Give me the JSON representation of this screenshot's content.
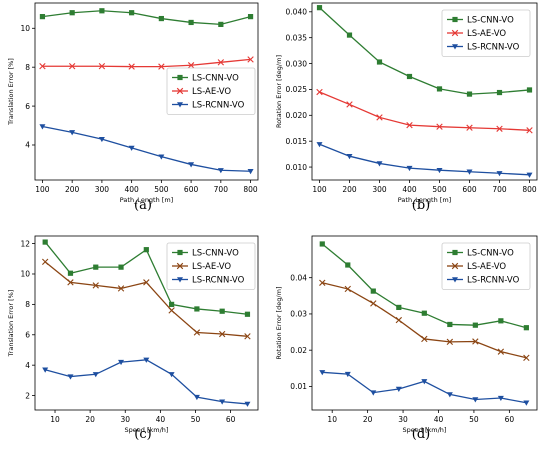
{
  "chart_data": [
    {
      "type": "line",
      "caption": "(a)",
      "xlabel": "Path_Length [m]",
      "ylabel": "Translation Error [%]",
      "xlim": [
        75,
        825
      ],
      "ylim": [
        2.2,
        11.3
      ],
      "xticks": [
        100,
        200,
        300,
        400,
        500,
        600,
        700,
        800
      ],
      "yticks": [
        4,
        6,
        8,
        10
      ],
      "ytick_labels": [
        "4",
        "6",
        "8",
        "10"
      ],
      "legend_position": "center-right",
      "x": [
        100,
        200,
        300,
        400,
        500,
        600,
        700,
        800
      ],
      "series": [
        {
          "name": "LS-CNN-VO",
          "color": "#2e7d32",
          "marker": "square",
          "values": [
            10.6,
            10.8,
            10.9,
            10.8,
            10.5,
            10.3,
            10.2,
            10.6
          ]
        },
        {
          "name": "LS-AE-VO",
          "color": "#e53935",
          "marker": "x",
          "values": [
            8.05,
            8.05,
            8.05,
            8.03,
            8.03,
            8.1,
            8.25,
            8.4
          ]
        },
        {
          "name": "LS-RCNN-VO",
          "color": "#1e4fa0",
          "marker": "triangle-down",
          "values": [
            4.95,
            4.65,
            4.3,
            3.85,
            3.4,
            3.0,
            2.7,
            2.65
          ]
        }
      ]
    },
    {
      "type": "line",
      "caption": "(b)",
      "xlabel": "Path_Length [m]",
      "ylabel": "Rotation Error [deg/m]",
      "xlim": [
        75,
        825
      ],
      "ylim": [
        0.0075,
        0.0417
      ],
      "xticks": [
        100,
        200,
        300,
        400,
        500,
        600,
        700,
        800
      ],
      "yticks": [
        0.01,
        0.015,
        0.02,
        0.025,
        0.03,
        0.035,
        0.04
      ],
      "ytick_labels": [
        "0.010",
        "0.015",
        "0.020",
        "0.025",
        "0.030",
        "0.035",
        "0.040"
      ],
      "legend_position": "top-right",
      "x": [
        100,
        200,
        300,
        400,
        500,
        600,
        700,
        800
      ],
      "series": [
        {
          "name": "LS-CNN-VO",
          "color": "#2e7d32",
          "marker": "square",
          "values": [
            0.0408,
            0.0355,
            0.0303,
            0.0275,
            0.0251,
            0.0241,
            0.0244,
            0.0249
          ]
        },
        {
          "name": "LS-AE-VO",
          "color": "#e53935",
          "marker": "x",
          "values": [
            0.0245,
            0.0221,
            0.0196,
            0.0181,
            0.0178,
            0.0176,
            0.0174,
            0.0171
          ]
        },
        {
          "name": "LS-RCNN-VO",
          "color": "#1e4fa0",
          "marker": "triangle-down",
          "values": [
            0.0144,
            0.0121,
            0.0107,
            0.0098,
            0.0094,
            0.0091,
            0.0088,
            0.0085
          ]
        }
      ]
    },
    {
      "type": "line",
      "caption": "(c)",
      "xlabel": "Speed [km/h]",
      "ylabel": "Translation Error [%]",
      "xlim": [
        4.3,
        67.8
      ],
      "ylim": [
        1.05,
        12.5
      ],
      "xticks": [
        10,
        20,
        30,
        40,
        50,
        60
      ],
      "yticks": [
        2,
        4,
        6,
        8,
        10,
        12
      ],
      "ytick_labels": [
        "2",
        "4",
        "6",
        "8",
        "10",
        "12"
      ],
      "legend_position": "top-right",
      "x": [
        7.2,
        14.4,
        21.6,
        28.8,
        36.0,
        43.2,
        50.4,
        57.6,
        64.8
      ],
      "series": [
        {
          "name": "LS-CNN-VO",
          "color": "#2e7d32",
          "marker": "square",
          "values": [
            12.1,
            10.05,
            10.45,
            10.45,
            11.6,
            8.0,
            7.7,
            7.55,
            7.35
          ]
        },
        {
          "name": "LS-AE-VO",
          "color": "#8b4513",
          "marker": "x",
          "values": [
            10.8,
            9.45,
            9.25,
            9.05,
            9.45,
            7.6,
            6.15,
            6.05,
            5.9
          ]
        },
        {
          "name": "LS-RCNN-VO",
          "color": "#1e4fa0",
          "marker": "triangle-down",
          "values": [
            3.7,
            3.25,
            3.4,
            4.2,
            4.35,
            3.4,
            1.9,
            1.6,
            1.45
          ]
        }
      ]
    },
    {
      "type": "line",
      "caption": "(d)",
      "xlabel": "Speed [km/h]",
      "ylabel": "Rotation Error [deg/m]",
      "xlim": [
        4.3,
        67.8
      ],
      "ylim": [
        0.0035,
        0.0515
      ],
      "xticks": [
        10,
        20,
        30,
        40,
        50,
        60
      ],
      "yticks": [
        0.01,
        0.02,
        0.03,
        0.04
      ],
      "ytick_labels": [
        "0.01",
        "0.02",
        "0.03",
        "0.04"
      ],
      "legend_position": "top-right",
      "x": [
        7.2,
        14.4,
        21.6,
        28.8,
        36.0,
        43.2,
        50.4,
        57.6,
        64.8
      ],
      "series": [
        {
          "name": "LS-CNN-VO",
          "color": "#2e7d32",
          "marker": "square",
          "values": [
            0.0493,
            0.0435,
            0.0363,
            0.0318,
            0.0302,
            0.0271,
            0.0269,
            0.0281,
            0.0262
          ]
        },
        {
          "name": "LS-AE-VO",
          "color": "#8b4513",
          "marker": "x",
          "values": [
            0.0386,
            0.0369,
            0.0329,
            0.0283,
            0.0231,
            0.0223,
            0.0224,
            0.0196,
            0.0179
          ]
        },
        {
          "name": "LS-RCNN-VO",
          "color": "#1e4fa0",
          "marker": "triangle-down",
          "values": [
            0.0139,
            0.0134,
            0.0083,
            0.0093,
            0.0114,
            0.0078,
            0.0064,
            0.0068,
            0.0055
          ]
        }
      ]
    }
  ]
}
